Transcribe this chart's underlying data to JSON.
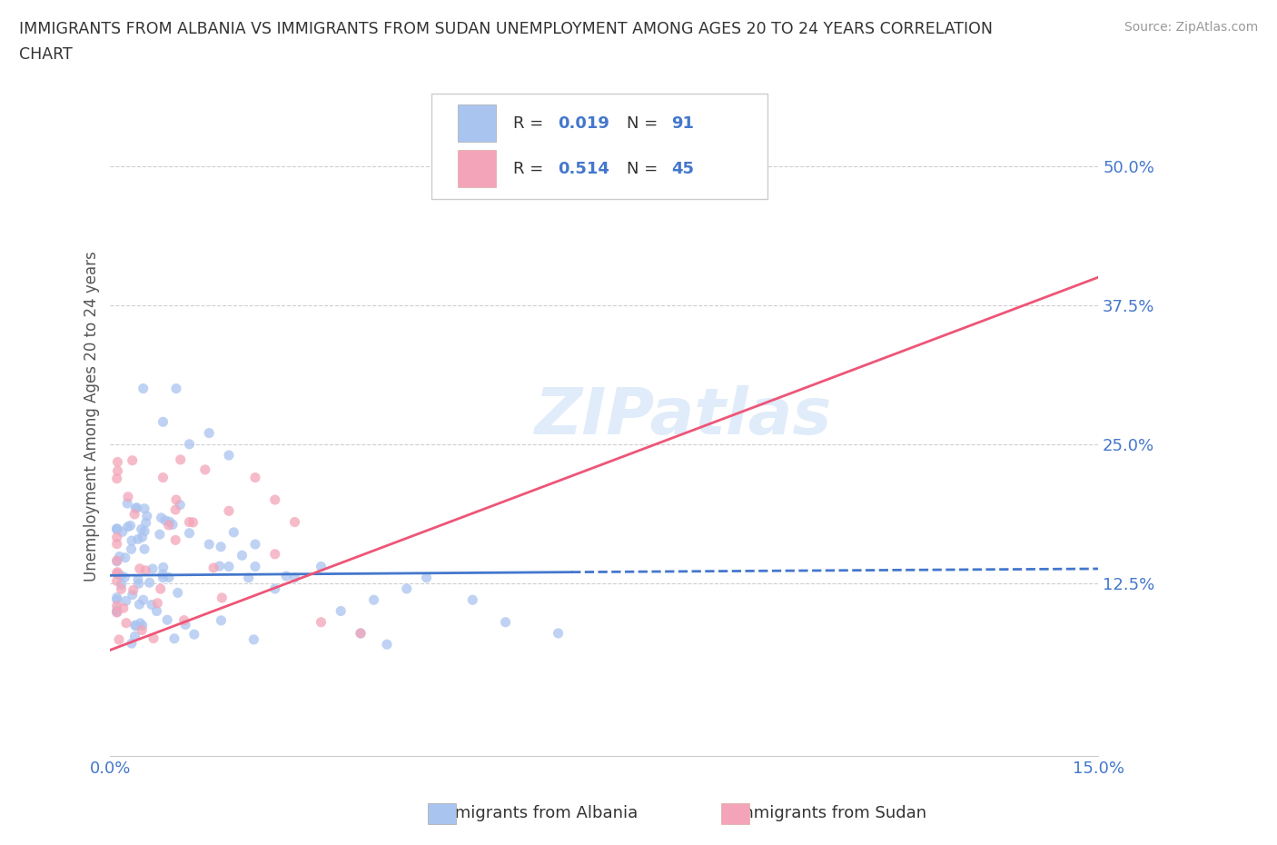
{
  "title_line1": "IMMIGRANTS FROM ALBANIA VS IMMIGRANTS FROM SUDAN UNEMPLOYMENT AMONG AGES 20 TO 24 YEARS CORRELATION",
  "title_line2": "CHART",
  "source": "Source: ZipAtlas.com",
  "ylabel": "Unemployment Among Ages 20 to 24 years",
  "xlim": [
    0.0,
    0.15
  ],
  "ylim": [
    -0.03,
    0.58
  ],
  "albania_color": "#aac4f0",
  "sudan_color": "#f4a4b8",
  "albania_line_color": "#4477cc",
  "sudan_line_color": "#ee5577",
  "albania_R": 0.019,
  "albania_N": 91,
  "sudan_R": 0.514,
  "sudan_N": 45,
  "watermark": "ZIPatlas",
  "background_color": "#ffffff",
  "grid_color": "#bbbbbb",
  "axis_color": "#4477cc",
  "legend_text_color": "#333333",
  "title_color": "#333333",
  "source_color": "#999999",
  "alb_line_x0": 0.0,
  "alb_line_x1": 0.07,
  "alb_line_y0": 0.132,
  "alb_line_y1": 0.135,
  "alb_line_x1_dash": 0.15,
  "alb_line_y1_dash": 0.138,
  "sud_line_x0": 0.0,
  "sud_line_x1": 0.15,
  "sud_line_y0": 0.065,
  "sud_line_y1": 0.4
}
